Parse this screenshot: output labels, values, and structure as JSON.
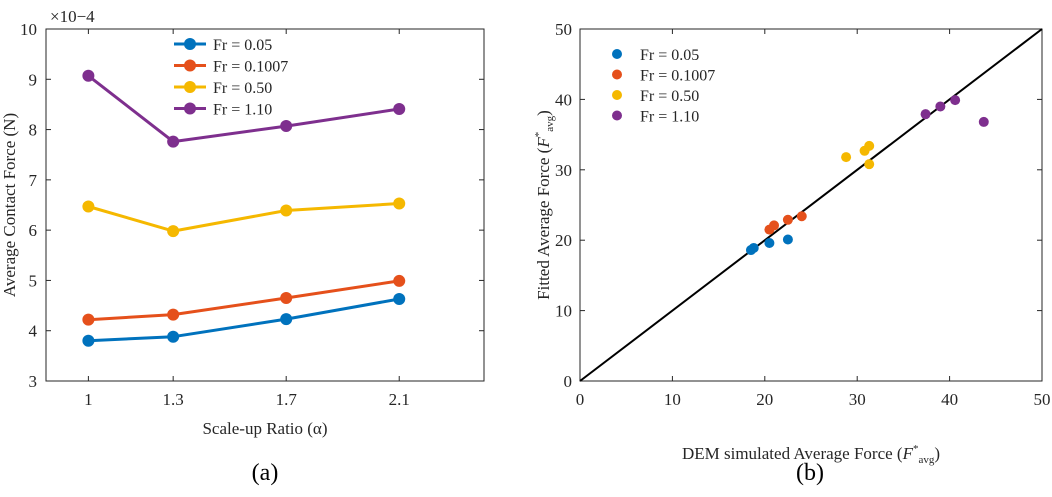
{
  "chart_data": [
    {
      "panel_label": "(a)",
      "type": "line",
      "title": "",
      "xlabel": "Scale-up Ratio (α)",
      "ylabel": "Average Contact Force (N)",
      "y_multiplier": "×10−4",
      "categories": [
        "1",
        "1.3",
        "1.7",
        "2.1"
      ],
      "x": [
        1,
        1.3,
        1.7,
        2.1
      ],
      "xlim": [
        0.85,
        2.4
      ],
      "ylim": [
        3,
        10
      ],
      "yticks": [
        3,
        4,
        5,
        6,
        7,
        8,
        9,
        10
      ],
      "legend_position": "top",
      "series": [
        {
          "name": "Fr = 0.05",
          "color": "#0072BD",
          "values": [
            3.8,
            3.88,
            4.23,
            4.63
          ]
        },
        {
          "name": "Fr = 0.1007",
          "color": "#E5501B",
          "values": [
            4.22,
            4.32,
            4.65,
            4.99
          ]
        },
        {
          "name": "Fr = 0.50",
          "color": "#F5B800",
          "values": [
            6.47,
            5.98,
            6.39,
            6.53
          ]
        },
        {
          "name": "Fr = 1.10",
          "color": "#7E2F8E",
          "values": [
            9.07,
            7.76,
            8.07,
            8.41
          ]
        }
      ]
    },
    {
      "panel_label": "(b)",
      "type": "scatter",
      "title": "",
      "xlabel": "DEM simulated Average Force",
      "xlabel_symbol": "F*avg",
      "ylabel": "Fitted Average Force",
      "ylabel_symbol": "F*avg",
      "xlim": [
        0,
        50
      ],
      "ylim": [
        0,
        50
      ],
      "xticks": [
        0,
        10,
        20,
        30,
        40,
        50
      ],
      "yticks": [
        0,
        10,
        20,
        30,
        40,
        50
      ],
      "reference_line": "y = x",
      "legend_position": "top-left",
      "series": [
        {
          "name": "Fr = 0.05",
          "color": "#0072BD",
          "points": [
            [
              18.5,
              18.6
            ],
            [
              18.8,
              18.9
            ],
            [
              20.5,
              19.6
            ],
            [
              22.5,
              20.1
            ]
          ]
        },
        {
          "name": "Fr = 0.1007",
          "color": "#E5501B",
          "points": [
            [
              20.5,
              21.5
            ],
            [
              21.0,
              22.1
            ],
            [
              22.5,
              22.9
            ],
            [
              24.0,
              23.4
            ]
          ]
        },
        {
          "name": "Fr = 0.50",
          "color": "#F5B800",
          "points": [
            [
              28.8,
              31.8
            ],
            [
              30.8,
              32.7
            ],
            [
              31.3,
              33.4
            ],
            [
              31.3,
              30.8
            ]
          ]
        },
        {
          "name": "Fr = 1.10",
          "color": "#7E2F8E",
          "points": [
            [
              37.4,
              37.9
            ],
            [
              39.0,
              39.0
            ],
            [
              40.6,
              39.9
            ],
            [
              43.7,
              36.8
            ]
          ]
        }
      ]
    }
  ]
}
